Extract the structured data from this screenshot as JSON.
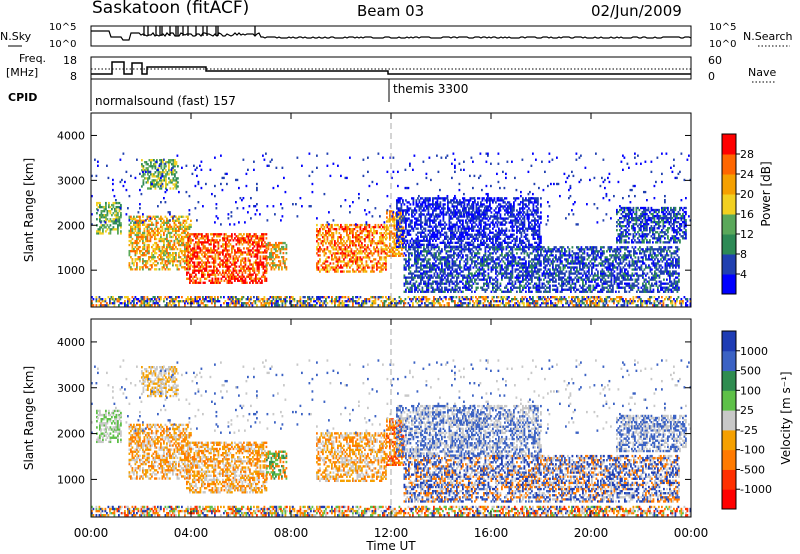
{
  "header": {
    "station": "Saskatoon (fitACF)",
    "beam": "Beam 03",
    "date": "02/Jun/2009"
  },
  "noise_panel": {
    "left_label": "N.Sky",
    "right_label": "N.Search",
    "top_tick": "10^5",
    "bottom_tick": "10^0",
    "top_tick_r": "10^5",
    "bottom_tick_r": "10^0"
  },
  "freq_panel": {
    "left_label_1": "Freq.",
    "left_label_2": "[MHz]",
    "right_label": "Nave",
    "left_ticks": [
      "18",
      "8"
    ],
    "right_ticks": [
      "60",
      "0"
    ]
  },
  "cpid_panel": {
    "label": "CPID",
    "mode_1": "normalsound (fast) 157",
    "mode_2": "themis 3300"
  },
  "chart_data": [
    {
      "type": "heatmap",
      "name": "power",
      "ylabel": "Slant Range [km]",
      "yticks": [
        "1000",
        "2000",
        "3000",
        "4000"
      ],
      "ylim": [
        180,
        4500
      ],
      "xlim": [
        0,
        24
      ],
      "colorbar": {
        "label": "Power [dB]",
        "ticks": [
          "4",
          "8",
          "12",
          "16",
          "20",
          "24",
          "28"
        ],
        "colors": [
          "#0000ff",
          "#2040b0",
          "#2d8a55",
          "#5aa85a",
          "#f2d020",
          "#f5a000",
          "#ff6600",
          "#ff0000"
        ]
      }
    },
    {
      "type": "heatmap",
      "name": "velocity",
      "ylabel": "Slant Range [km]",
      "yticks": [
        "1000",
        "2000",
        "3000",
        "4000"
      ],
      "ylim": [
        180,
        4500
      ],
      "xlim": [
        0,
        24
      ],
      "xticks": [
        "00:00",
        "04:00",
        "08:00",
        "12:00",
        "16:00",
        "20:00",
        "00:00"
      ],
      "xlabel": "Time UT",
      "colorbar": {
        "label": "Velocity [m s⁻¹]",
        "ticks": [
          "1000",
          "500",
          "100",
          "25",
          "-25",
          "-100",
          "-500",
          "-1000"
        ],
        "colors": [
          "#1e3cb4",
          "#3b62c4",
          "#2f8c50",
          "#5ec048",
          "#c8c8c8",
          "#f5a000",
          "#ff7a00",
          "#ff3000",
          "#ff0000"
        ]
      }
    }
  ]
}
